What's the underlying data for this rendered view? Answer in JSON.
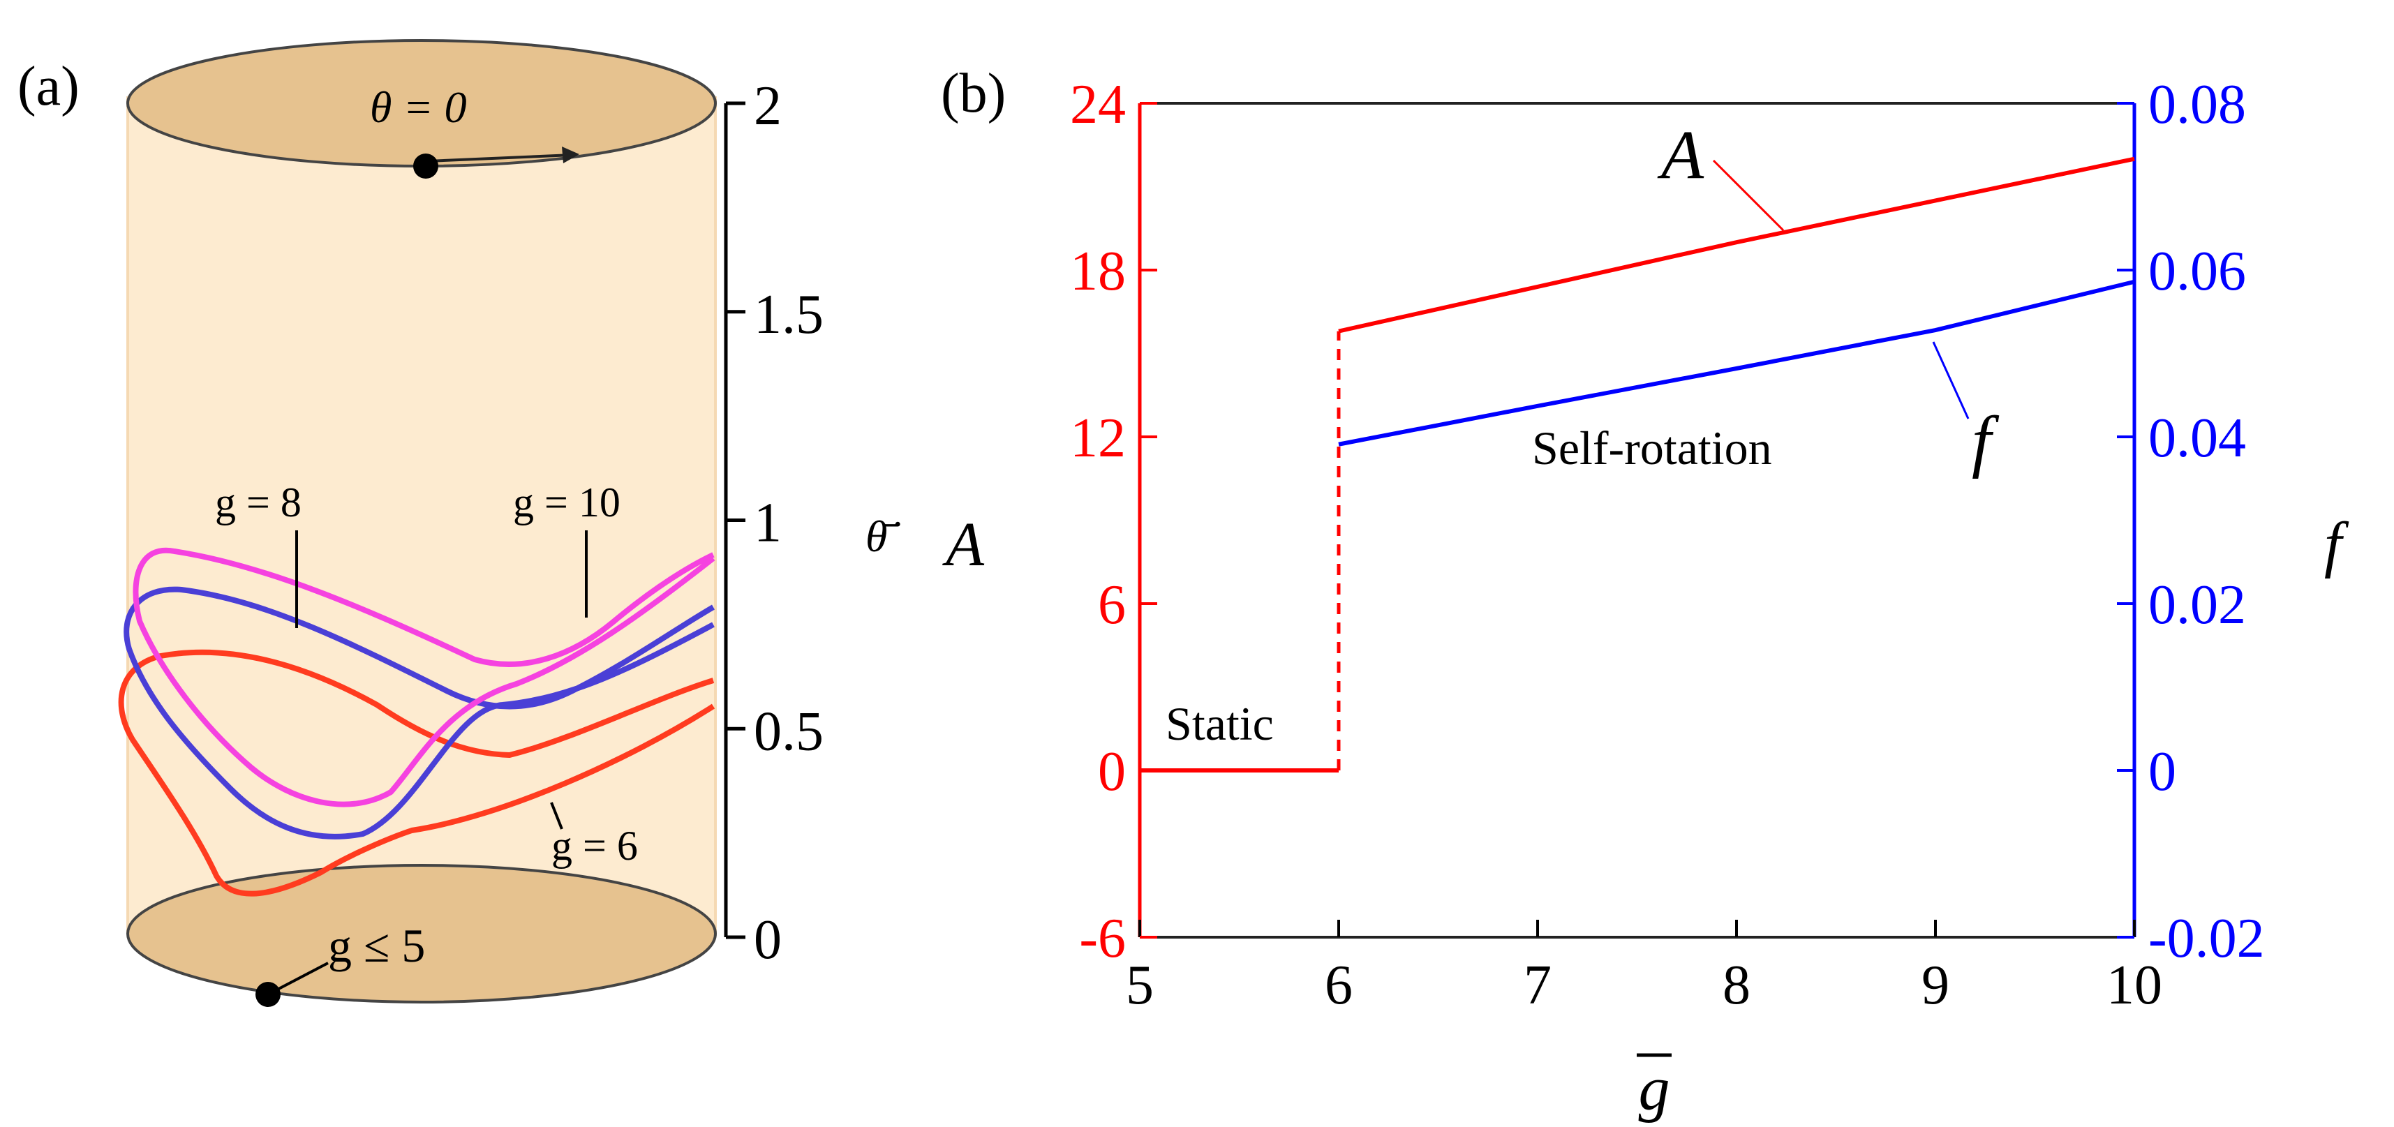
{
  "panel_a": {
    "label": "(a)",
    "top_label": "θ = 0",
    "axis_label": "θ̄̇",
    "ticks": [
      "0",
      "0.5",
      "1",
      "1.5",
      "2"
    ],
    "curve_labels": {
      "g8": "g = 8",
      "g10": "g = 10",
      "g6": "g = 6",
      "g5": "g ≤ 5"
    },
    "colors": {
      "cylinder": "#fdebd0",
      "cap": "#e6c28f",
      "g10": "#f542e0",
      "g8": "#4a3fd6",
      "g6": "#ff3b1f"
    }
  },
  "chart_data": {
    "type": "line",
    "panel_label": "(b)",
    "xlabel": "g",
    "ylabel_left": "A",
    "ylabel_right": "f",
    "xlim": [
      5,
      10
    ],
    "ylim_left": [
      -6,
      24
    ],
    "ylim_right": [
      -0.02,
      0.08
    ],
    "x_ticks": [
      "5",
      "6",
      "7",
      "8",
      "9",
      "10"
    ],
    "y_ticks_left": [
      "-6",
      "0",
      "6",
      "12",
      "18",
      "24"
    ],
    "y_ticks_right": [
      "-0.02",
      "0",
      "0.02",
      "0.04",
      "0.06",
      "0.08"
    ],
    "series": [
      {
        "name": "A",
        "axis": "left",
        "color": "#ff0000",
        "static": {
          "x": [
            5,
            6
          ],
          "y": [
            0,
            0
          ]
        },
        "jump": {
          "x": 6,
          "y": [
            0,
            15.8
          ]
        },
        "rotation": {
          "x": [
            6,
            7,
            8,
            9,
            10
          ],
          "y": [
            15.8,
            17.4,
            19.0,
            20.5,
            22.0
          ]
        }
      },
      {
        "name": "f",
        "axis": "right",
        "color": "#0000ff",
        "rotation": {
          "x": [
            6,
            7,
            8,
            9,
            10
          ],
          "y": [
            0.0391,
            0.0437,
            0.0482,
            0.0528,
            0.0586
          ]
        }
      }
    ],
    "annotations": {
      "static": "Static",
      "self_rotation": "Self-rotation",
      "A": "A",
      "f": "f"
    }
  }
}
